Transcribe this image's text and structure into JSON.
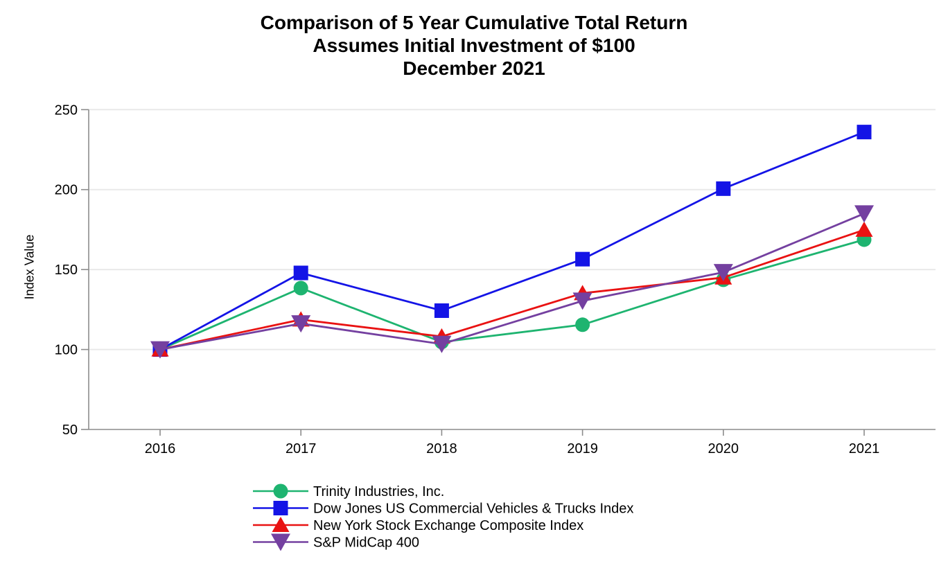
{
  "chart_data": {
    "type": "line",
    "title": "Comparison of 5 Year Cumulative Total Return",
    "subtitle": "Assumes Initial Investment of $100",
    "subtitle2": "December 2021",
    "xlabel": "",
    "ylabel": "Index Value",
    "categories": [
      "2016",
      "2017",
      "2018",
      "2019",
      "2020",
      "2021"
    ],
    "ylim": [
      50,
      250
    ],
    "y_ticks": [
      250,
      200,
      150,
      100,
      50
    ],
    "grid": "horizontal-light",
    "legend_position": "bottom-left",
    "colors": {
      "axis": "#8c8c8c",
      "gridline": "#e9e9e9",
      "text": "#000000"
    },
    "series": [
      {
        "name": "Trinity Industries, Inc.",
        "marker": "circle",
        "color": "#1eb470",
        "values": [
          100,
          138.4,
          104.7,
          115.5,
          143.6,
          168.7
        ]
      },
      {
        "name": "Dow Jones US Commercial Vehicles & Trucks Index",
        "marker": "square",
        "color": "#1414e6",
        "values": [
          100,
          147.9,
          124.3,
          156.5,
          200.6,
          236.0
        ]
      },
      {
        "name": "New York Stock Exchange Composite Index",
        "marker": "triangle-up",
        "color": "#e91212",
        "values": [
          100,
          118.7,
          108.1,
          135.2,
          145.0,
          174.8
        ]
      },
      {
        "name": "S&P MidCap 400",
        "marker": "triangle-down",
        "color": "#7440a0",
        "values": [
          100,
          116.2,
          103.4,
          130.4,
          148.3,
          185.0
        ]
      }
    ]
  }
}
